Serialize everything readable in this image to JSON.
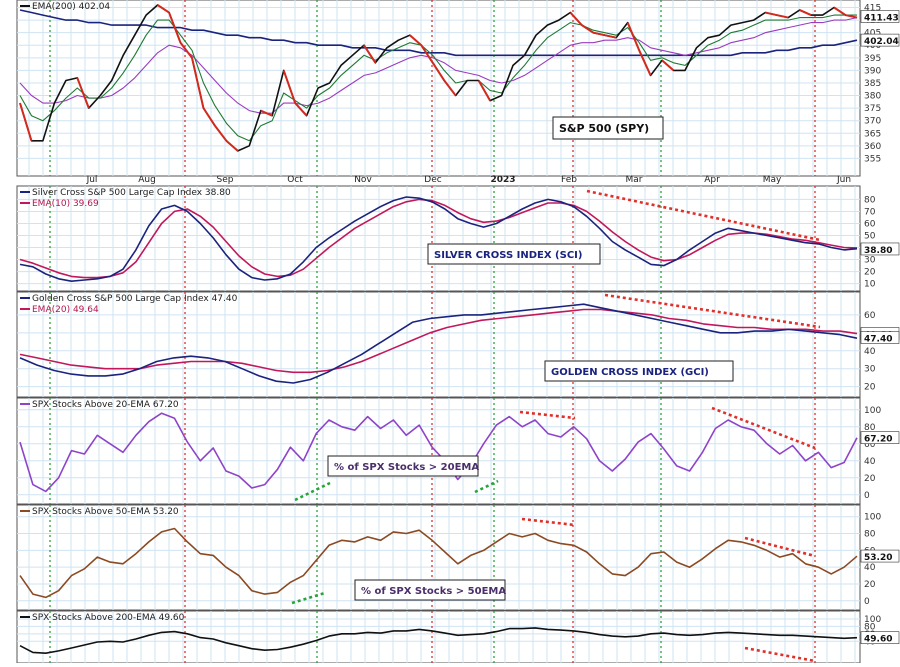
{
  "chart_data": [
    {
      "type": "candlestick",
      "panel": "price",
      "title": "",
      "legend": [
        "EMA(200) 402.04"
      ],
      "ylim": [
        350,
        416
      ],
      "yticks": [
        355,
        360,
        365,
        370,
        375,
        380,
        385,
        390,
        395,
        400,
        405,
        410,
        415
      ],
      "last_values": [
        "411.43",
        "402.04"
      ],
      "annotation": "S&P 500 (SPY)",
      "x_labels": [
        "Jul",
        "Aug",
        "Sep",
        "Oct",
        "Nov",
        "Dec",
        "2023",
        "Feb",
        "Mar",
        "Apr",
        "May",
        "Jun"
      ],
      "series": [
        {
          "name": "S&P 500 (SPY)",
          "color": "#111111",
          "shown_as": "price bars",
          "values": [
            377,
            362,
            362,
            377,
            386,
            387,
            375,
            380,
            386,
            396,
            404,
            412,
            416,
            413,
            401,
            395,
            375,
            368,
            362,
            358,
            360,
            374,
            372,
            390,
            377,
            372,
            383,
            385,
            392,
            396,
            400,
            393,
            399,
            402,
            404,
            400,
            393,
            386,
            380,
            386,
            386,
            378,
            380,
            392,
            396,
            404,
            408,
            410,
            413,
            408,
            405,
            404,
            403,
            409,
            398,
            388,
            394,
            390,
            390,
            399,
            403,
            404,
            408,
            409,
            410,
            413,
            412,
            411,
            414,
            412,
            412,
            415,
            412,
            411
          ]
        },
        {
          "name": "",
          "color": "#1f7a32",
          "values": [
            380,
            372,
            370,
            374,
            379,
            383,
            379,
            379,
            383,
            389,
            396,
            404,
            410,
            410,
            404,
            398,
            385,
            376,
            369,
            364,
            362,
            368,
            370,
            381,
            378,
            375,
            380,
            383,
            388,
            392,
            396,
            394,
            397,
            399,
            401,
            400,
            396,
            390,
            385,
            386,
            386,
            382,
            381,
            387,
            392,
            398,
            403,
            406,
            409,
            408,
            406,
            405,
            404,
            407,
            401,
            394,
            395,
            393,
            392,
            396,
            400,
            402,
            405,
            406,
            408,
            410,
            410,
            410,
            411,
            411,
            411,
            412,
            412,
            412
          ]
        },
        {
          "name": "",
          "color": "#9b3bbf",
          "values": [
            385,
            380,
            377,
            377,
            378,
            380,
            379,
            379,
            380,
            383,
            387,
            392,
            397,
            400,
            399,
            396,
            391,
            386,
            381,
            377,
            374,
            373,
            373,
            377,
            377,
            376,
            377,
            379,
            382,
            385,
            388,
            389,
            391,
            393,
            395,
            396,
            395,
            393,
            390,
            389,
            388,
            386,
            385,
            386,
            388,
            391,
            394,
            397,
            400,
            401,
            401,
            402,
            402,
            403,
            402,
            399,
            398,
            397,
            396,
            397,
            398,
            399,
            401,
            402,
            403,
            405,
            406,
            407,
            408,
            409,
            409,
            410,
            410,
            411
          ]
        },
        {
          "name": "EMA(200) 402.04",
          "color": "#1a237e",
          "values": [
            414,
            413,
            412,
            411,
            410,
            410,
            409,
            409,
            408,
            408,
            408,
            408,
            407,
            407,
            407,
            406,
            406,
            405,
            404,
            404,
            403,
            403,
            402,
            402,
            401,
            401,
            400,
            400,
            400,
            399,
            399,
            399,
            398,
            398,
            398,
            397,
            397,
            397,
            396,
            396,
            396,
            396,
            396,
            396,
            396,
            396,
            396,
            396,
            396,
            396,
            396,
            396,
            396,
            396,
            396,
            396,
            396,
            396,
            396,
            396,
            396,
            396,
            396,
            397,
            397,
            397,
            398,
            398,
            399,
            399,
            400,
            400,
            401,
            402
          ]
        }
      ]
    },
    {
      "type": "line",
      "panel": "SCI",
      "legend": [
        "Silver Cross S&P 500 Large Cap Index 38.80",
        "EMA(10) 39.69"
      ],
      "ylim": [
        8,
        87
      ],
      "yticks": [
        10,
        20,
        30,
        40,
        50,
        60,
        70,
        80
      ],
      "last_values": [
        "38.80"
      ],
      "annotation": "SILVER CROSS INDEX (SCI)",
      "series": [
        {
          "name": "Silver Cross S&P 500 Large Cap Index 38.80",
          "color": "#1a237e",
          "values": [
            26,
            24,
            18,
            14,
            12,
            13,
            14,
            16,
            22,
            38,
            58,
            72,
            75,
            70,
            60,
            48,
            34,
            22,
            15,
            13,
            14,
            18,
            28,
            40,
            48,
            55,
            62,
            68,
            74,
            79,
            82,
            81,
            78,
            72,
            64,
            60,
            57,
            60,
            66,
            72,
            77,
            80,
            78,
            74,
            66,
            56,
            45,
            38,
            32,
            26,
            25,
            30,
            38,
            45,
            52,
            56,
            54,
            52,
            50,
            48,
            46,
            44,
            43,
            40,
            38,
            39
          ]
        },
        {
          "name": "EMA(10) 39.69",
          "color": "#c2185b",
          "values": [
            30,
            27,
            23,
            19,
            16,
            15,
            15,
            16,
            19,
            28,
            44,
            60,
            70,
            72,
            66,
            57,
            45,
            33,
            24,
            18,
            16,
            17,
            22,
            31,
            40,
            48,
            56,
            62,
            68,
            74,
            78,
            80,
            79,
            75,
            69,
            64,
            61,
            62,
            65,
            69,
            73,
            77,
            77,
            75,
            70,
            62,
            53,
            45,
            38,
            32,
            29,
            30,
            34,
            40,
            46,
            51,
            52,
            52,
            51,
            49,
            47,
            46,
            44,
            42,
            40,
            39.7
          ]
        }
      ]
    },
    {
      "type": "line",
      "panel": "GCI",
      "legend": [
        "Golden Cross S&P 500 Large Cap Index 47.40",
        "EMA(20) 49.64"
      ],
      "ylim": [
        17,
        70
      ],
      "yticks": [
        20,
        30,
        40,
        50,
        60
      ],
      "last_values": [
        "49.64",
        "47.40"
      ],
      "annotation": "GOLDEN CROSS INDEX (GCI)",
      "series": [
        {
          "name": "Golden Cross S&P 500 Large Cap Index 47.40",
          "color": "#1a237e",
          "values": [
            36,
            32,
            29,
            27,
            26,
            26,
            27,
            30,
            34,
            36,
            37,
            36,
            34,
            30,
            26,
            23,
            22,
            24,
            28,
            33,
            38,
            44,
            50,
            56,
            58,
            59,
            60,
            60,
            61,
            62,
            63,
            64,
            65,
            66,
            64,
            62,
            60,
            58,
            56,
            54,
            52,
            50,
            50,
            51,
            51,
            52,
            51,
            50,
            49,
            47
          ]
        },
        {
          "name": "EMA(20) 49.64",
          "color": "#c2185b",
          "values": [
            38,
            36,
            34,
            32,
            31,
            30,
            30,
            30,
            32,
            33,
            34,
            34,
            34,
            33,
            31,
            29,
            28,
            28,
            29,
            31,
            34,
            38,
            42,
            46,
            50,
            53,
            55,
            57,
            58,
            59,
            60,
            61,
            62,
            63,
            63,
            62,
            61,
            60,
            58,
            57,
            55,
            54,
            53,
            53,
            52,
            52,
            52,
            51,
            51,
            49.6
          ]
        }
      ]
    },
    {
      "type": "line",
      "panel": "above20",
      "legend": [
        "SPX Stocks Above 20-EMA 67.20"
      ],
      "ylim": [
        -5,
        108
      ],
      "yticks": [
        0,
        20,
        40,
        60,
        80,
        100
      ],
      "last_values": [
        "67.20"
      ],
      "annotation": "% of SPX Stocks > 20EMA",
      "series": [
        {
          "name": "SPX Stocks Above 20-EMA 67.20",
          "color": "#8e44c9",
          "values": [
            62,
            12,
            4,
            20,
            52,
            48,
            70,
            60,
            50,
            70,
            86,
            96,
            90,
            62,
            40,
            55,
            28,
            22,
            8,
            12,
            30,
            56,
            40,
            72,
            88,
            80,
            76,
            92,
            78,
            88,
            70,
            82,
            56,
            40,
            18,
            35,
            60,
            82,
            92,
            80,
            88,
            72,
            68,
            80,
            66,
            40,
            28,
            42,
            62,
            72,
            54,
            34,
            28,
            50,
            78,
            88,
            80,
            76,
            60,
            48,
            58,
            40,
            50,
            32,
            38,
            67
          ]
        }
      ]
    },
    {
      "type": "line",
      "panel": "above50",
      "legend": [
        "SPX Stocks Above 50-EMA 53.20"
      ],
      "ylim": [
        -5,
        108
      ],
      "yticks": [
        0,
        20,
        40,
        60,
        80,
        100
      ],
      "last_values": [
        "53.20"
      ],
      "annotation": "% of SPX Stocks > 50EMA",
      "series": [
        {
          "name": "SPX Stocks Above 50-EMA 53.20",
          "color": "#8b4a22",
          "values": [
            30,
            8,
            4,
            12,
            30,
            38,
            52,
            46,
            44,
            56,
            70,
            82,
            86,
            70,
            56,
            54,
            40,
            30,
            12,
            8,
            10,
            22,
            30,
            48,
            66,
            72,
            70,
            76,
            72,
            82,
            80,
            84,
            72,
            58,
            44,
            54,
            60,
            70,
            80,
            76,
            80,
            72,
            68,
            66,
            58,
            44,
            32,
            30,
            40,
            56,
            58,
            46,
            40,
            50,
            62,
            72,
            70,
            66,
            60,
            52,
            56,
            44,
            40,
            32,
            40,
            53
          ]
        }
      ]
    },
    {
      "type": "line",
      "panel": "above200",
      "legend": [
        "SPX Stocks Above 200-EMA 49.60"
      ],
      "ylim": [
        -5,
        108
      ],
      "yticks": [
        40,
        60,
        80,
        100
      ],
      "last_values": [
        "49.60"
      ],
      "series": [
        {
          "name": "SPX Stocks Above 200-EMA 49.60",
          "color": "#111111",
          "values": [
            28,
            10,
            8,
            14,
            22,
            30,
            38,
            40,
            38,
            46,
            56,
            64,
            66,
            60,
            50,
            46,
            36,
            28,
            20,
            16,
            18,
            24,
            32,
            42,
            54,
            60,
            60,
            64,
            62,
            68,
            68,
            72,
            68,
            62,
            56,
            58,
            60,
            66,
            74,
            74,
            76,
            72,
            70,
            68,
            64,
            58,
            54,
            52,
            54,
            60,
            62,
            58,
            56,
            58,
            62,
            64,
            62,
            60,
            58,
            56,
            56,
            54,
            52,
            50,
            48,
            49.6
          ]
        }
      ]
    }
  ]
}
